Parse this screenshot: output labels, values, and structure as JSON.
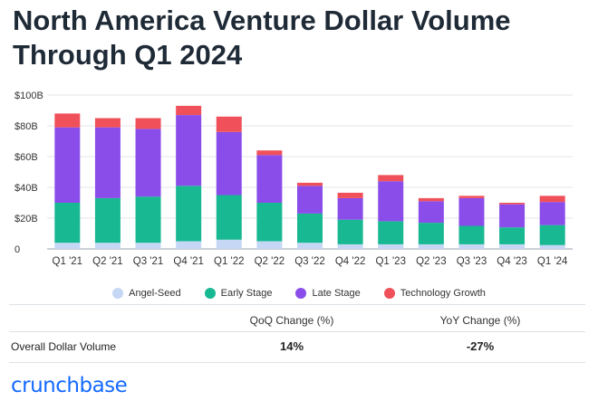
{
  "title": {
    "line1": "North America Venture Dollar Volume",
    "line2": "Through Q1 2024"
  },
  "chart_data": {
    "type": "bar",
    "stacked": true,
    "categories": [
      "Q1 '21",
      "Q2 '21",
      "Q3 '21",
      "Q4 '21",
      "Q1 '22",
      "Q2 '22",
      "Q3 '22",
      "Q4 '22",
      "Q1 '23",
      "Q2 '23",
      "Q3 '23",
      "Q4 '23",
      "Q1 '24"
    ],
    "series": [
      {
        "name": "Angel-Seed",
        "color": "#c5d7f5",
        "values": [
          4,
          4,
          4,
          5,
          6,
          5,
          4,
          3,
          3,
          3,
          3,
          3,
          2.5
        ]
      },
      {
        "name": "Early Stage",
        "color": "#17b892",
        "values": [
          26,
          29,
          30,
          36,
          29,
          25,
          19,
          16,
          15,
          14,
          12,
          11,
          13
        ]
      },
      {
        "name": "Late Stage",
        "color": "#8a4dea",
        "values": [
          49,
          46,
          44,
          46,
          41,
          31,
          18,
          14,
          26,
          14,
          18,
          15,
          15
        ]
      },
      {
        "name": "Technology Growth",
        "color": "#f0505a",
        "values": [
          9,
          6,
          7,
          6,
          10,
          3,
          2,
          3.5,
          4,
          2,
          1.5,
          1,
          4
        ]
      }
    ],
    "ylim": [
      0,
      100
    ],
    "yticks": [
      0,
      20,
      40,
      60,
      80,
      100
    ],
    "ytick_labels": [
      "0",
      "$20B",
      "$40B",
      "$60B",
      "$80B",
      "$100B"
    ],
    "grid": true,
    "legend_position": "bottom"
  },
  "table": {
    "col1_header": "QoQ Change (%)",
    "col2_header": "YoY Change (%)",
    "row_label": "Overall Dollar Volume",
    "qoq": "14%",
    "yoy": "-27%"
  },
  "brand": {
    "name": "crunchbase"
  }
}
